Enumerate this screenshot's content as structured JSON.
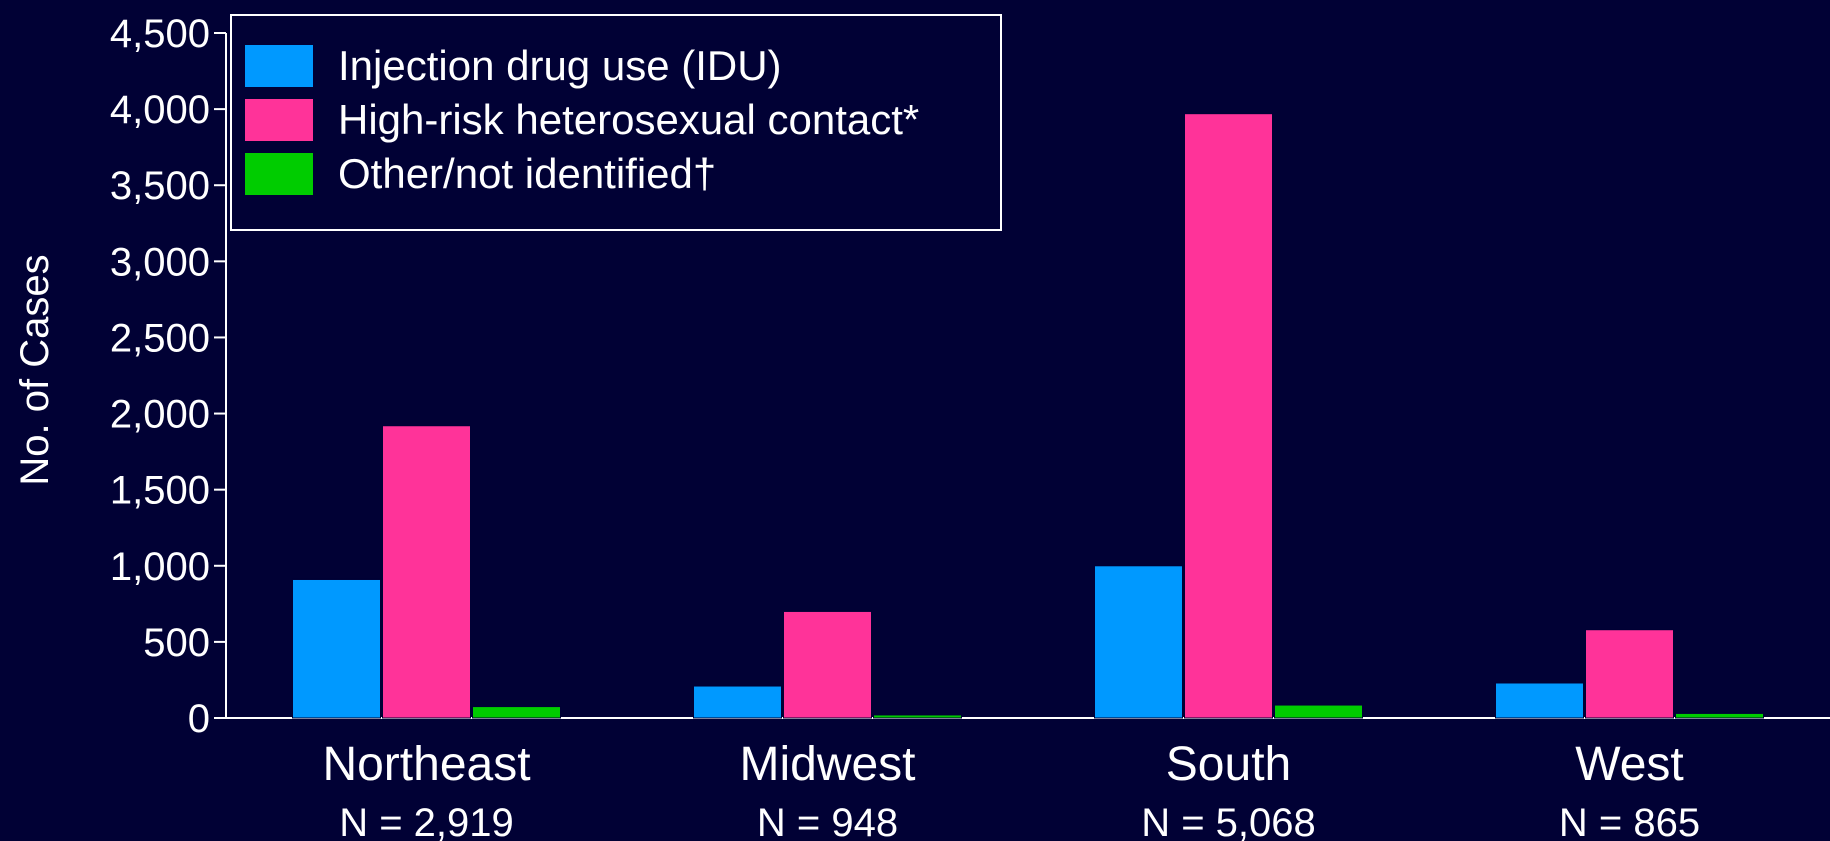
{
  "chart_data": {
    "type": "bar",
    "ylabel": "No. of Cases",
    "ylim": [
      0,
      4500
    ],
    "yticks": [
      0,
      500,
      1000,
      1500,
      2000,
      2500,
      3000,
      3500,
      4000,
      4500
    ],
    "ytick_labels": [
      "0",
      "500",
      "1,000",
      "1,500",
      "2,000",
      "2,500",
      "3,000",
      "3,500",
      "4,000",
      "4,500"
    ],
    "categories": [
      "Northeast",
      "Midwest",
      "South",
      "West"
    ],
    "category_sublabels": [
      "N = 2,919",
      "N = 948",
      "N = 5,068",
      "N = 865"
    ],
    "series": [
      {
        "name": "Injection drug use (IDU)",
        "color": "#0099ff",
        "values": [
          910,
          210,
          1000,
          230
        ]
      },
      {
        "name": "High-risk heterosexual contact*",
        "color": "#ff3399",
        "values": [
          1920,
          700,
          3970,
          580
        ]
      },
      {
        "name": "Other/not identified†",
        "color": "#00cc00",
        "values": [
          75,
          20,
          85,
          30
        ]
      }
    ],
    "legend_position": "top-left",
    "grid": false
  }
}
